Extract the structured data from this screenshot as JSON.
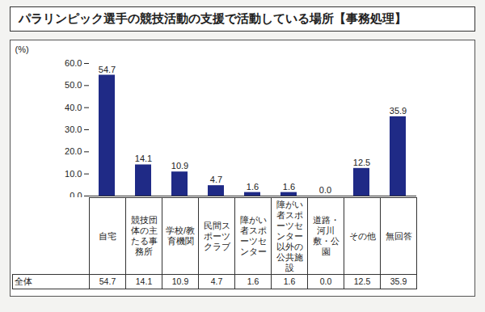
{
  "chart_data": {
    "type": "bar",
    "title": "パラリンピック選手の競技活動の支援で活動している場所【事務処理】",
    "y_label": "(%)",
    "categories": [
      "自宅",
      "競技団体の主たる事務所",
      "学校/教育機関",
      "民間スポーツクラブ",
      "障がい者スポーツセンター",
      "障がい者スポーツセンター以外の公共施設",
      "道路・河川敷・公園",
      "その他",
      "無回答"
    ],
    "values": [
      54.7,
      14.1,
      10.9,
      4.7,
      1.6,
      1.6,
      0.0,
      12.5,
      35.9
    ],
    "value_labels": [
      "54.7",
      "14.1",
      "10.9",
      "4.7",
      "1.6",
      "1.6",
      "0.0",
      "12.5",
      "35.9"
    ],
    "row_label": "全体",
    "color": "#1f2a86",
    "ylim": [
      0,
      60
    ],
    "yticks": [
      {
        "value": 0,
        "label": "0.0"
      },
      {
        "value": 10,
        "label": "10.0"
      },
      {
        "value": 20,
        "label": "20.0"
      },
      {
        "value": 30,
        "label": "30.0"
      },
      {
        "value": 40,
        "label": "40.0"
      },
      {
        "value": 50,
        "label": "50.0"
      },
      {
        "value": 60,
        "label": "60.0"
      }
    ],
    "grid": false,
    "data_labels": true
  }
}
